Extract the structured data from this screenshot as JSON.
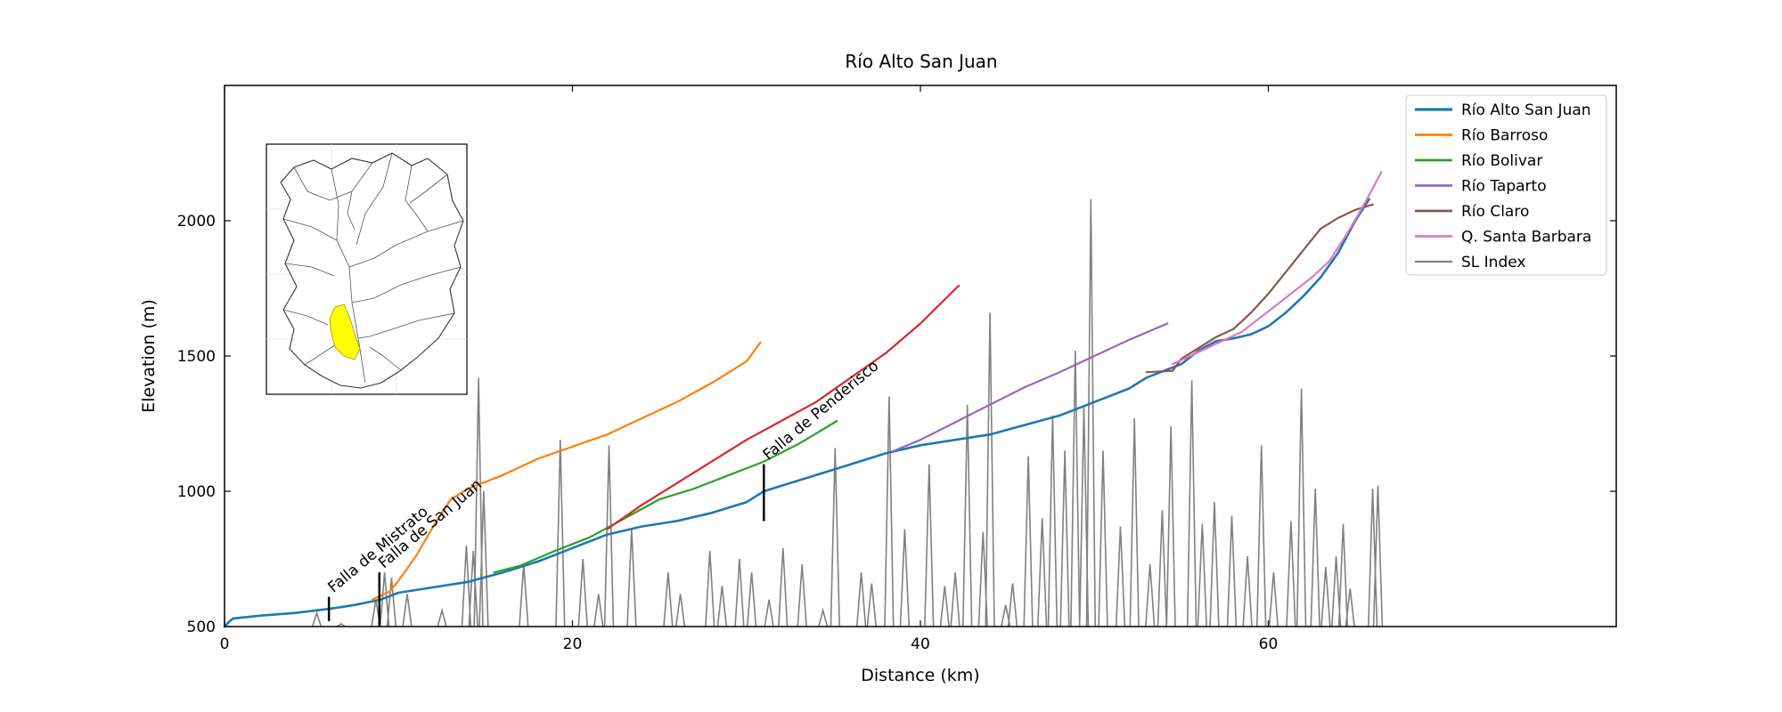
{
  "chart_data": {
    "type": "line",
    "title": "Río Alto San Juan",
    "xlabel": "Distance (km)",
    "ylabel": "Elevation (m)",
    "xlim": [
      0,
      80
    ],
    "ylim": [
      500,
      2500
    ],
    "xticks": [
      0,
      20,
      40,
      60
    ],
    "yticks": [
      500,
      1000,
      1500,
      2000
    ],
    "grid": false,
    "legend_position": "top-right",
    "series": [
      {
        "name": "Río Alto San Juan",
        "color": "#1f77b4",
        "width": 2.6,
        "x": [
          0,
          0.3,
          0.5,
          2,
          4,
          6,
          7.5,
          9,
          10,
          12,
          14,
          16,
          18,
          20,
          22,
          24,
          26,
          28,
          30,
          31,
          32,
          34,
          36,
          38,
          40,
          42,
          44,
          46,
          48,
          50,
          52,
          53,
          55,
          56,
          57,
          58,
          59,
          60,
          61,
          62,
          63,
          64,
          65,
          65.8
        ],
        "y": [
          500,
          520,
          530,
          540,
          550,
          565,
          580,
          600,
          625,
          645,
          665,
          700,
          740,
          790,
          840,
          870,
          890,
          920,
          960,
          1000,
          1020,
          1060,
          1100,
          1140,
          1170,
          1190,
          1210,
          1245,
          1280,
          1330,
          1380,
          1420,
          1470,
          1520,
          1555,
          1565,
          1580,
          1610,
          1660,
          1720,
          1790,
          1880,
          2000,
          2080
        ]
      },
      {
        "name": "Río Barroso",
        "color": "#ff7f0e",
        "width": 2.2,
        "x": [
          8.5,
          9.5,
          10,
          11,
          12,
          13,
          14,
          16,
          18,
          20,
          22,
          24,
          26,
          28,
          30,
          30.8
        ],
        "y": [
          600,
          630,
          670,
          760,
          870,
          970,
          1010,
          1060,
          1120,
          1165,
          1210,
          1270,
          1330,
          1400,
          1480,
          1550
        ]
      },
      {
        "name": "Río Bolivar",
        "color": "#2ca02c",
        "width": 2.2,
        "x": [
          15.5,
          17,
          19,
          21,
          23,
          25,
          27,
          29,
          31,
          33,
          35.2
        ],
        "y": [
          700,
          725,
          780,
          830,
          900,
          970,
          1010,
          1060,
          1110,
          1175,
          1260
        ]
      },
      {
        "name": "Río Taparto",
        "color": "#9467bd",
        "width": 2.2,
        "x": [
          38.5,
          40,
          42,
          44,
          46,
          48,
          50,
          52,
          54.2
        ],
        "y": [
          1150,
          1190,
          1255,
          1320,
          1385,
          1440,
          1500,
          1560,
          1620
        ]
      },
      {
        "name": "Río Claro",
        "color": "#8c564b",
        "width": 2.2,
        "x": [
          53,
          54.5,
          55,
          56,
          57,
          58,
          59,
          60,
          61,
          62,
          63,
          64,
          65,
          66
        ],
        "y": [
          1440,
          1445,
          1490,
          1530,
          1570,
          1600,
          1660,
          1730,
          1810,
          1890,
          1970,
          2010,
          2040,
          2060
        ]
      },
      {
        "name": "Q. Santa Barbara",
        "color": "#e377c2",
        "width": 2.2,
        "x": [
          54.5,
          55.5,
          56.5,
          57.5,
          58.5,
          59.5,
          60.5,
          61.5,
          62.5,
          63.5,
          64.5,
          65.5,
          66.5
        ],
        "y": [
          1470,
          1500,
          1530,
          1560,
          1590,
          1640,
          1690,
          1740,
          1790,
          1850,
          1950,
          2060,
          2180
        ]
      },
      {
        "name": "",
        "color": "#d62728",
        "width": 2.2,
        "x": [
          22,
          24,
          26,
          28,
          30,
          32,
          34,
          36,
          38,
          40,
          42.2
        ],
        "y": [
          860,
          950,
          1030,
          1110,
          1190,
          1260,
          1330,
          1420,
          1510,
          1620,
          1760
        ]
      }
    ],
    "sl_index": {
      "name": "SL Index",
      "color": "#808080",
      "spikes": [
        [
          5.3,
          550
        ],
        [
          6.7,
          510
        ],
        [
          8.7,
          600
        ],
        [
          9.2,
          700
        ],
        [
          9.6,
          680
        ],
        [
          10.5,
          620
        ],
        [
          12.5,
          560
        ],
        [
          13.9,
          800
        ],
        [
          14.3,
          780
        ],
        [
          14.6,
          1420
        ],
        [
          14.9,
          1000
        ],
        [
          17.2,
          730
        ],
        [
          19.3,
          1190
        ],
        [
          20.6,
          750
        ],
        [
          21.5,
          620
        ],
        [
          22.1,
          1170
        ],
        [
          23.4,
          860
        ],
        [
          25.5,
          700
        ],
        [
          26.2,
          620
        ],
        [
          27.9,
          780
        ],
        [
          28.6,
          650
        ],
        [
          29.6,
          750
        ],
        [
          30.3,
          700
        ],
        [
          31.3,
          600
        ],
        [
          32.1,
          790
        ],
        [
          33.2,
          730
        ],
        [
          34.4,
          560
        ],
        [
          35.1,
          1160
        ],
        [
          36.6,
          700
        ],
        [
          37.2,
          660
        ],
        [
          38.2,
          1350
        ],
        [
          39.1,
          860
        ],
        [
          40.5,
          1100
        ],
        [
          41.4,
          650
        ],
        [
          42.0,
          700
        ],
        [
          42.7,
          1320
        ],
        [
          43.6,
          850
        ],
        [
          44.0,
          1660
        ],
        [
          44.9,
          580
        ],
        [
          45.3,
          660
        ],
        [
          46.2,
          1130
        ],
        [
          47.0,
          900
        ],
        [
          47.6,
          1280
        ],
        [
          48.3,
          1150
        ],
        [
          48.9,
          1520
        ],
        [
          49.4,
          1310
        ],
        [
          49.8,
          2080
        ],
        [
          50.5,
          1150
        ],
        [
          51.5,
          870
        ],
        [
          52.3,
          1270
        ],
        [
          53.2,
          730
        ],
        [
          53.9,
          930
        ],
        [
          54.4,
          1240
        ],
        [
          55.6,
          1410
        ],
        [
          56.2,
          880
        ],
        [
          56.9,
          960
        ],
        [
          57.9,
          910
        ],
        [
          58.8,
          760
        ],
        [
          59.6,
          1170
        ],
        [
          60.3,
          700
        ],
        [
          61.3,
          890
        ],
        [
          61.9,
          1380
        ],
        [
          62.7,
          1010
        ],
        [
          63.3,
          720
        ],
        [
          63.9,
          760
        ],
        [
          64.3,
          880
        ],
        [
          64.7,
          640
        ],
        [
          66.0,
          1010
        ],
        [
          66.3,
          1020
        ]
      ]
    },
    "annotations": [
      {
        "text": "Falla de Mistrato",
        "x": 6.0,
        "y_from": 520,
        "y_to": 610
      },
      {
        "text": "Falla de San Juan",
        "x": 8.9,
        "y_from": 500,
        "y_to": 700
      },
      {
        "text": "Falla de Penderisco",
        "x": 31.0,
        "y_from": 890,
        "y_to": 1100
      }
    ],
    "inset": {
      "highlight_color": "#ffff00"
    }
  }
}
